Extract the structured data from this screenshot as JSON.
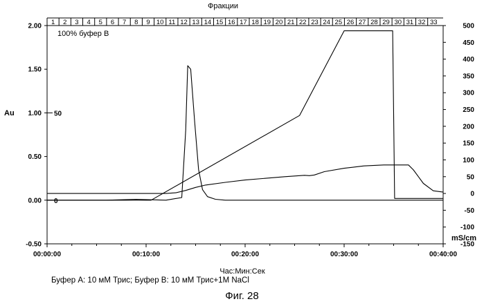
{
  "chart_data": {
    "type": "line",
    "title": "Фракции",
    "xlabel": "Час:Мин:Сек",
    "ylabel_left": "Au",
    "ylabel_right": "mS/cm",
    "xlim": [
      0,
      40
    ],
    "ylim_left": [
      -0.5,
      2.0
    ],
    "ylim_right": [
      -150,
      500
    ],
    "x_ticks": [
      "00:00:00",
      "00:10:00",
      "00:20:00",
      "00:30:00",
      "00:40:00"
    ],
    "y_left_ticks": [
      "-0.50",
      "0.00",
      "0.50",
      "1.00",
      "1.50",
      "2.00"
    ],
    "y_right_ticks": [
      "-150",
      "-100",
      "-50",
      "0",
      "50",
      "100",
      "150",
      "200",
      "250",
      "300",
      "350",
      "400",
      "450",
      "500"
    ],
    "fractions": [
      "1",
      "2",
      "3",
      "4",
      "5",
      "6",
      "7",
      "8",
      "9",
      "10",
      "11",
      "12",
      "13",
      "14",
      "15",
      "16",
      "17",
      "18",
      "19",
      "20",
      "21",
      "22",
      "23",
      "24",
      "25",
      "26",
      "27",
      "28",
      "29",
      "30",
      "31",
      "32",
      "33"
    ],
    "inner_scale": {
      "labels": [
        "50",
        "0"
      ],
      "values": [
        1.0,
        0.0
      ]
    },
    "annotation": "100% буфер В",
    "series": [
      {
        "axis": "left",
        "x": [
          0,
          6,
          9,
          10.5,
          12,
          13.6,
          14,
          14.2,
          14.5,
          14.9,
          15.3,
          15.7,
          16.2,
          17,
          18,
          20,
          40
        ],
        "y": [
          0,
          0,
          0.01,
          0.005,
          0,
          0.03,
          0.8,
          1.54,
          1.5,
          0.9,
          0.35,
          0.12,
          0.04,
          0.01,
          0,
          0,
          0
        ]
      },
      {
        "axis": "left",
        "x": [
          0,
          10.5,
          25.5,
          30,
          34.9,
          35.1,
          40
        ],
        "y": [
          0,
          0,
          0.97,
          1.94,
          1.94,
          0.02,
          0.02
        ]
      },
      {
        "axis": "right",
        "x": [
          0,
          12,
          13,
          14,
          15,
          16,
          18,
          20,
          22,
          24,
          26,
          26.5,
          27,
          28,
          30,
          32,
          34,
          35,
          36.5,
          37,
          37.5,
          38,
          39,
          40
        ],
        "y": [
          0,
          0,
          2,
          9,
          18,
          25,
          33,
          40,
          45,
          50,
          54,
          53,
          55,
          65,
          75,
          82,
          85,
          85,
          85,
          70,
          50,
          30,
          8,
          4
        ]
      }
    ]
  },
  "footnote": "Буфер А: 10 мМ Трис; Буфер В: 10 мМ Трис+1М NaCl",
  "caption": "Фиг. 28"
}
